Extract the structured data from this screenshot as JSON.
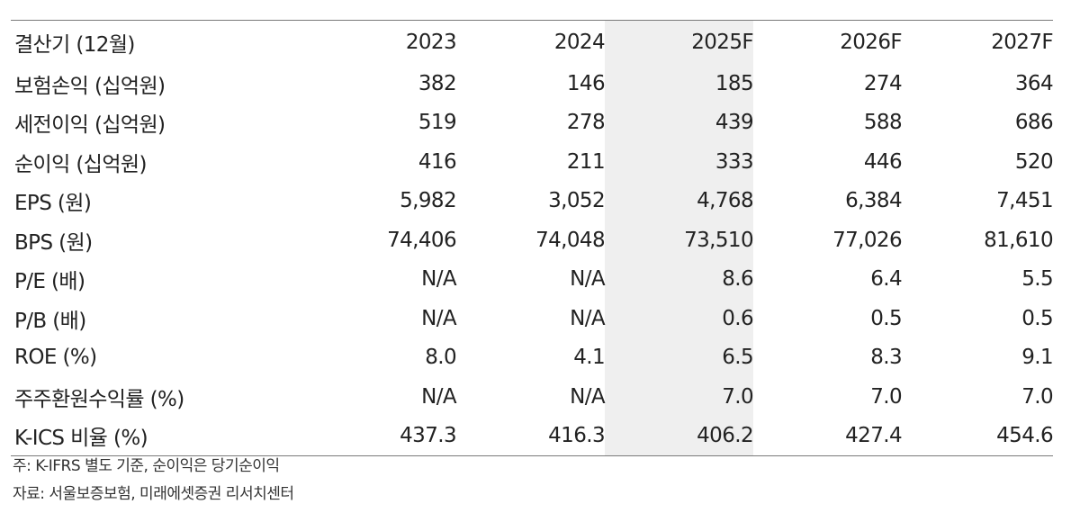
{
  "table": {
    "header": [
      "결산기 (12월)",
      "2023",
      "2024",
      "2025F",
      "2026F",
      "2027F"
    ],
    "highlight_column": "2025F",
    "rows": [
      {
        "label": "보험손익 (십억원)",
        "values": [
          "382",
          "146",
          "185",
          "274",
          "364"
        ]
      },
      {
        "label": "세전이익 (십억원)",
        "values": [
          "519",
          "278",
          "439",
          "588",
          "686"
        ]
      },
      {
        "label": "순이익 (십억원)",
        "values": [
          "416",
          "211",
          "333",
          "446",
          "520"
        ]
      },
      {
        "label": "EPS (원)",
        "values": [
          "5,982",
          "3,052",
          "4,768",
          "6,384",
          "7,451"
        ]
      },
      {
        "label": "BPS (원)",
        "values": [
          "74,406",
          "74,048",
          "73,510",
          "77,026",
          "81,610"
        ]
      },
      {
        "label": "P/E (배)",
        "values": [
          "N/A",
          "N/A",
          "8.6",
          "6.4",
          "5.5"
        ]
      },
      {
        "label": "P/B (배)",
        "values": [
          "N/A",
          "N/A",
          "0.6",
          "0.5",
          "0.5"
        ]
      },
      {
        "label": "ROE (%)",
        "values": [
          "8.0",
          "4.1",
          "6.5",
          "8.3",
          "9.1"
        ]
      },
      {
        "label": "주주환원수익률 (%)",
        "values": [
          "N/A",
          "N/A",
          "7.0",
          "7.0",
          "7.0"
        ]
      },
      {
        "label": "K-ICS 비율 (%)",
        "values": [
          "437.3",
          "416.3",
          "406.2",
          "427.4",
          "454.6"
        ]
      }
    ]
  },
  "footnotes": {
    "note": "주: K-IFRS 별도 기준, 순이익은 당기순이익",
    "source": "자료: 서울보증보험, 미래에셋증권 리서치센터"
  },
  "colors": {
    "highlight": "#efefef",
    "rule": "#7a7a7a",
    "text": "#222222"
  }
}
